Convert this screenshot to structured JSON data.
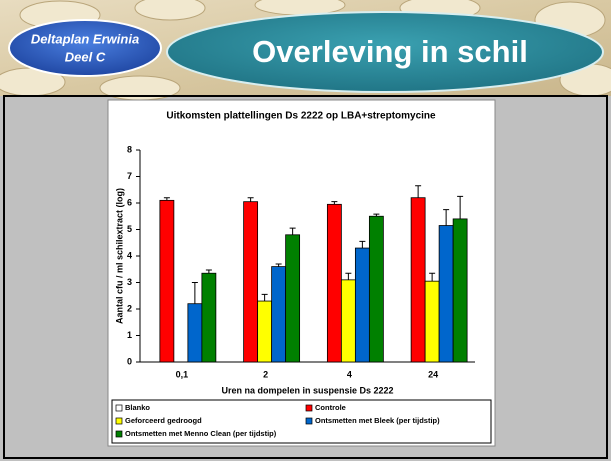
{
  "slide": {
    "badge_line1": "Deltaplan Erwinia",
    "badge_line2": "Deel C",
    "title": "Overleving in schil"
  },
  "chart_data": {
    "type": "bar",
    "title": "Uitkomsten plattellingen Ds 2222 op LBA+streptomycine",
    "x_label": "Uren na dompelen in suspensie Ds 2222",
    "y_label": "Aantal cfu / ml schilextract (log)",
    "categories": [
      "0,1",
      "2",
      "4",
      "24"
    ],
    "series": [
      {
        "name": "Blanko",
        "color": "#ffffff",
        "values": [
          null,
          null,
          null,
          null
        ],
        "errors": [
          null,
          null,
          null,
          null
        ]
      },
      {
        "name": "Controle",
        "color": "#ff0000",
        "values": [
          6.1,
          6.05,
          5.95,
          6.2
        ],
        "errors": [
          0.1,
          0.15,
          0.1,
          0.45
        ]
      },
      {
        "name": "Geforceerd gedroogd",
        "color": "#ffff00",
        "values": [
          null,
          2.3,
          3.1,
          3.05
        ],
        "errors": [
          null,
          0.25,
          0.25,
          0.3
        ]
      },
      {
        "name": "Ontsmetten met Bleek (per tijdstip)",
        "color": "#0066cc",
        "values": [
          2.2,
          3.6,
          4.3,
          5.15
        ],
        "errors": [
          0.8,
          0.1,
          0.25,
          0.6
        ]
      },
      {
        "name": "Ontsmetten met Menno Clean (per tijdstip)",
        "color": "#008000",
        "values": [
          3.35,
          4.8,
          5.5,
          5.4
        ],
        "errors": [
          0.12,
          0.25,
          0.08,
          0.85
        ]
      }
    ],
    "ylim": [
      0,
      8
    ],
    "yticks": [
      0,
      1,
      2,
      3,
      4,
      5,
      6,
      7,
      8
    ],
    "legend": "bottom"
  }
}
